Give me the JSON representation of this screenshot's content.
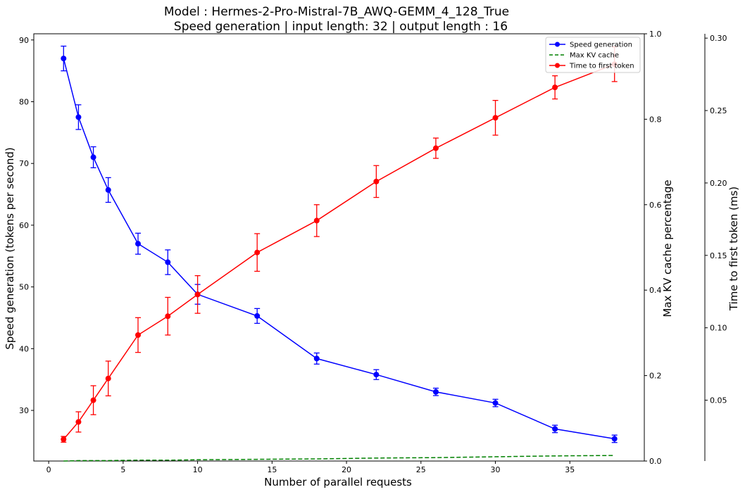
{
  "chart_data": {
    "type": "line",
    "title": "Model : Hermes-2-Pro-Mistral-7B_AWQ-GEMM_4_128_True",
    "subtitle": "Speed generation | input length: 32 | output length : 16",
    "xlabel": "Number of parallel requests",
    "ylabel": "Speed generation (tokens per second)",
    "y2label": "Max KV cache percentage",
    "y3label": "Time to first token (ms)",
    "xlim": [
      -1,
      40
    ],
    "ylim": [
      21.8,
      91
    ],
    "y2lim": [
      0,
      1.0
    ],
    "y3lim": [
      0.008,
      0.303
    ],
    "x_ticks": [
      0,
      5,
      10,
      15,
      20,
      25,
      30,
      35
    ],
    "y_ticks": [
      30,
      40,
      50,
      60,
      70,
      80,
      90
    ],
    "y2_ticks": [
      0.0,
      0.2,
      0.4,
      0.6,
      0.8,
      1.0
    ],
    "y2_tick_labels": [
      "0.0",
      "0.2",
      "0.4",
      "0.6",
      "0.8",
      "1.0"
    ],
    "y3_ticks": [
      0.05,
      0.1,
      0.15,
      0.2,
      0.25,
      0.3
    ],
    "y3_tick_labels": [
      "0.05",
      "0.10",
      "0.15",
      "0.20",
      "0.25",
      "0.30"
    ],
    "grid": false,
    "legend_position": "top-right",
    "x": [
      1,
      2,
      3,
      4,
      6,
      8,
      10,
      14,
      18,
      22,
      26,
      30,
      34,
      38
    ],
    "series": [
      {
        "name": "Speed generation",
        "axis": "left",
        "color": "#0000ff",
        "style": "solid-marker-errorbar",
        "values": [
          87.0,
          77.5,
          71.0,
          65.7,
          57.0,
          54.0,
          48.8,
          45.3,
          38.4,
          35.8,
          33.0,
          31.2,
          27.0,
          25.4
        ],
        "errors": [
          2.0,
          2.0,
          1.7,
          2.0,
          1.7,
          2.0,
          1.6,
          1.2,
          0.9,
          0.8,
          0.6,
          0.6,
          0.6,
          0.6
        ]
      },
      {
        "name": "Max KV cache",
        "axis": "right",
        "color": "#008000",
        "style": "dashed",
        "values": [
          0.0,
          0.001,
          0.001,
          0.001,
          0.002,
          0.002,
          0.003,
          0.004,
          0.005,
          0.007,
          0.008,
          0.01,
          0.012,
          0.013
        ]
      },
      {
        "name": "Time to first token",
        "axis": "right2",
        "color": "#ff0000",
        "style": "solid-marker-errorbar",
        "values": [
          0.023,
          0.035,
          0.05,
          0.065,
          0.095,
          0.108,
          0.123,
          0.152,
          0.174,
          0.201,
          0.224,
          0.245,
          0.266,
          0.282
        ],
        "errors": [
          0.002,
          0.007,
          0.01,
          0.012,
          0.012,
          0.013,
          0.013,
          0.013,
          0.011,
          0.011,
          0.007,
          0.012,
          0.008,
          0.012
        ]
      }
    ]
  }
}
